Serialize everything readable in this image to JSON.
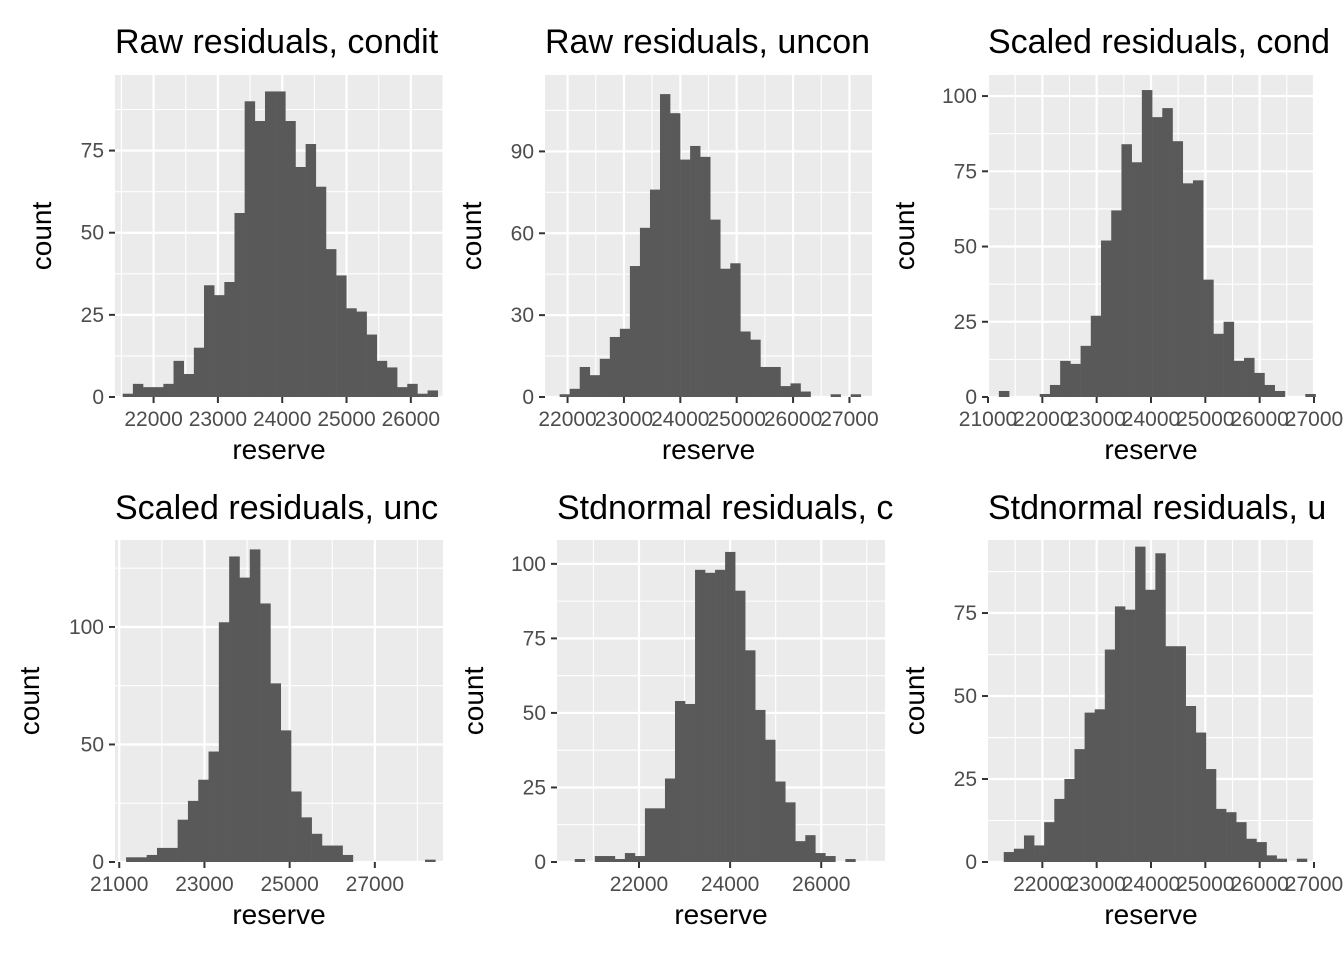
{
  "chart_data": [
    {
      "type": "bar",
      "title": "Raw residuals, condit",
      "xlabel": "reserve",
      "ylabel": "count",
      "xlim": [
        21400,
        26500
      ],
      "ylim": [
        0,
        98
      ],
      "xticks": [
        22000,
        23000,
        24000,
        25000,
        26000
      ],
      "xtick_labels": [
        "22000",
        "23000",
        "24000",
        "25000",
        "26000"
      ],
      "yticks": [
        0,
        25,
        50,
        75
      ],
      "ytick_labels": [
        "0",
        "25",
        "50",
        "75"
      ],
      "bin_start": 21520,
      "bin_width": 158,
      "values": [
        1,
        4,
        3,
        3,
        4,
        11,
        7,
        15,
        34,
        31,
        35,
        56,
        90,
        84,
        93,
        93,
        84,
        70,
        77,
        64,
        45,
        37,
        27,
        26,
        19,
        11,
        9,
        3,
        4,
        1,
        2
      ],
      "grid": true
    },
    {
      "type": "bar",
      "title": "Raw residuals, uncon",
      "xlabel": "reserve",
      "ylabel": "count",
      "xlim": [
        21600,
        27400
      ],
      "ylim": [
        0,
        118
      ],
      "xticks": [
        22000,
        23000,
        24000,
        25000,
        26000,
        27000
      ],
      "xtick_labels": [
        "22000",
        "23000",
        "24000",
        "25000",
        "26000",
        "27000"
      ],
      "yticks": [
        0,
        30,
        60,
        90
      ],
      "ytick_labels": [
        "0",
        "30",
        "60",
        "90"
      ],
      "bin_start": 21860,
      "bin_width": 178,
      "values": [
        1,
        3,
        11,
        8,
        14,
        22,
        25,
        48,
        62,
        76,
        111,
        104,
        87,
        92,
        88,
        65,
        47,
        49,
        24,
        21,
        11,
        11,
        4,
        5,
        2,
        0,
        0,
        1,
        0,
        1
      ],
      "grid": true
    },
    {
      "type": "bar",
      "title": "Scaled residuals, cond",
      "xlabel": "reserve",
      "ylabel": "count",
      "xlim": [
        21000,
        27000
      ],
      "ylim": [
        0,
        107
      ],
      "xticks": [
        21000,
        22000,
        23000,
        24000,
        25000,
        26000,
        27000
      ],
      "xtick_labels": [
        "21000",
        "22000",
        "23000",
        "24000",
        "25000",
        "26000",
        "27000"
      ],
      "yticks": [
        0,
        25,
        50,
        75,
        100
      ],
      "ytick_labels": [
        "0",
        "25",
        "50",
        "75",
        "100"
      ],
      "bin_start": 21200,
      "bin_width": 188,
      "values": [
        2,
        0,
        0,
        0,
        1,
        4,
        12,
        11,
        17,
        27,
        52,
        62,
        84,
        78,
        102,
        93,
        96,
        85,
        71,
        72,
        39,
        21,
        25,
        12,
        13,
        8,
        4,
        2,
        0,
        0,
        1
      ],
      "grid": true
    },
    {
      "type": "bar",
      "title": "Scaled residuals, unc",
      "xlabel": "reserve",
      "ylabel": "count",
      "xlim": [
        20900,
        28600
      ],
      "ylim": [
        0,
        137
      ],
      "xticks": [
        21000,
        23000,
        25000,
        27000
      ],
      "xtick_labels": [
        "21000",
        "23000",
        "25000",
        "27000"
      ],
      "yticks": [
        0,
        50,
        100
      ],
      "ytick_labels": [
        "0",
        "50",
        "100"
      ],
      "bin_start": 21160,
      "bin_width": 242,
      "values": [
        2,
        2,
        3,
        6,
        6,
        18,
        26,
        35,
        47,
        102,
        130,
        121,
        133,
        110,
        76,
        56,
        30,
        19,
        12,
        7,
        7,
        3,
        0,
        0,
        0,
        0,
        0,
        0,
        0,
        1
      ],
      "grid": true
    },
    {
      "type": "bar",
      "title": "Stdnormal residuals, c",
      "xlabel": "reserve",
      "ylabel": "count",
      "xlim": [
        20200,
        27400
      ],
      "ylim": [
        0,
        108
      ],
      "xticks": [
        22000,
        24000,
        26000
      ],
      "xtick_labels": [
        "22000",
        "24000",
        "26000"
      ],
      "yticks": [
        0,
        25,
        50,
        75,
        100
      ],
      "ytick_labels": [
        "0",
        "25",
        "50",
        "75",
        "100"
      ],
      "bin_start": 20370,
      "bin_width": 220,
      "values": [
        0,
        1,
        0,
        2,
        2,
        1,
        3,
        2,
        18,
        18,
        28,
        54,
        53,
        98,
        97,
        98,
        104,
        91,
        71,
        51,
        41,
        27,
        20,
        7,
        9,
        3,
        2,
        0,
        1
      ],
      "grid": true
    },
    {
      "type": "bar",
      "title": "Stdnormal residuals, u",
      "xlabel": "reserve",
      "ylabel": "count",
      "xlim": [
        21000,
        27000
      ],
      "ylim": [
        0,
        97
      ],
      "xticks": [
        22000,
        23000,
        24000,
        25000,
        26000,
        27000
      ],
      "xtick_labels": [
        "22000",
        "23000",
        "24000",
        "25000",
        "26000",
        "27000"
      ],
      "yticks": [
        0,
        25,
        50,
        75
      ],
      "ytick_labels": [
        "0",
        "25",
        "50",
        "75"
      ],
      "bin_start": 21290,
      "bin_width": 186,
      "values": [
        3,
        4,
        8,
        5,
        12,
        19,
        25,
        34,
        45,
        46,
        64,
        77,
        76,
        95,
        82,
        93,
        65,
        65,
        47,
        39,
        28,
        16,
        15,
        12,
        7,
        6,
        2,
        1,
        0,
        1
      ],
      "grid": true
    }
  ]
}
